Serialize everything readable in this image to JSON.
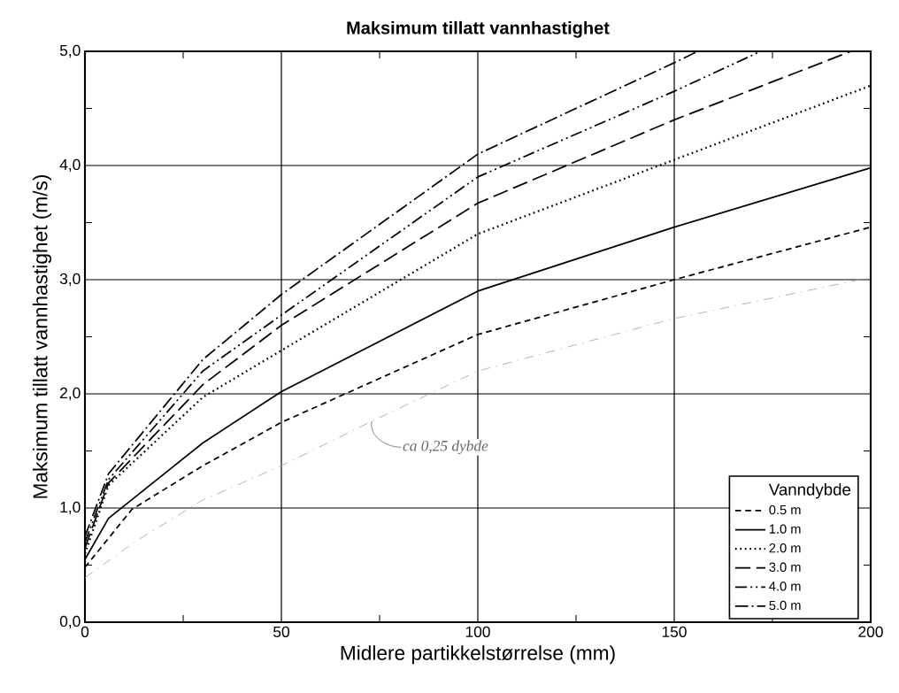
{
  "chart_data": {
    "type": "line",
    "title": "Maksimum tillatt vannhastighet",
    "xlabel": "Midlere partikkelstørrelse (mm)",
    "ylabel": "Maksimum tillatt vannhastighet (m/s)",
    "legend_title": "Vanndybde",
    "legend": "bottom right",
    "grid": true,
    "xlim": [
      0,
      200
    ],
    "ylim": [
      0,
      5
    ],
    "xticks": [
      0,
      {
        "value": 25,
        "label": null
      },
      50,
      {
        "value": 75,
        "label": null
      },
      100,
      {
        "value": 125,
        "label": null
      },
      150,
      {
        "value": 175,
        "label": null
      },
      200
    ],
    "yticks": [
      {
        "value": 0,
        "label": "0,0"
      },
      {
        "value": 0.5,
        "label": null
      },
      {
        "value": 1,
        "label": "1,0"
      },
      {
        "value": 1.5,
        "label": null
      },
      {
        "value": 2,
        "label": "2,0"
      },
      {
        "value": 2.5,
        "label": null
      },
      {
        "value": 3,
        "label": "3,0"
      },
      {
        "value": 3.5,
        "label": null
      },
      {
        "value": 4,
        "label": "4,0"
      },
      {
        "value": 4.5,
        "label": null
      },
      {
        "value": 5,
        "label": "5,0"
      }
    ],
    "series": [
      {
        "name": "0.5 m",
        "color": "#000000",
        "line_style": "dashed",
        "x": [
          0,
          12,
          30,
          50,
          100,
          150,
          200
        ],
        "values": [
          0.48,
          0.99,
          1.37,
          1.75,
          2.52,
          3.0,
          3.46
        ]
      },
      {
        "name": "1.0 m",
        "color": "#000000",
        "line_style": "solid",
        "x": [
          0,
          6,
          30,
          50,
          100,
          150,
          200
        ],
        "values": [
          0.55,
          0.91,
          1.57,
          2.02,
          2.9,
          3.46,
          3.98
        ]
      },
      {
        "name": "2.0 m",
        "color": "#000000",
        "line_style": "dotted",
        "x": [
          0,
          6,
          30,
          50,
          100,
          150,
          200
        ],
        "values": [
          0.6,
          1.2,
          1.97,
          2.38,
          3.4,
          4.05,
          4.7
        ]
      },
      {
        "name": "3.0 m",
        "color": "#000000",
        "line_style": "long dashed",
        "x": [
          0,
          6,
          30,
          50,
          100,
          150,
          195
        ],
        "values": [
          0.65,
          1.22,
          2.08,
          2.6,
          3.67,
          4.4,
          5.0
        ]
      },
      {
        "name": "4.0 m",
        "color": "#000000",
        "line_style": "dash dot dot",
        "x": [
          0,
          6,
          30,
          50,
          100,
          150,
          172
        ],
        "values": [
          0.7,
          1.25,
          2.2,
          2.69,
          3.9,
          4.65,
          5.0
        ]
      },
      {
        "name": "5.0 m",
        "color": "#000000",
        "line_style": "dash dot",
        "x": [
          0,
          6,
          30,
          50,
          100,
          150,
          156
        ],
        "values": [
          0.75,
          1.3,
          2.3,
          2.87,
          4.1,
          4.9,
          5.0
        ]
      },
      {
        "color": "#a0a0a0",
        "line_style": "loosely dash dot",
        "x": [
          0,
          13,
          30,
          50,
          73,
          100,
          150,
          200
        ],
        "values": [
          0.39,
          0.71,
          1.07,
          1.37,
          1.76,
          2.2,
          2.66,
          3.02
        ]
      }
    ],
    "annotations": [
      {
        "text": "ca 0,25 dybde",
        "x": 73,
        "y": 1.76
      }
    ]
  }
}
